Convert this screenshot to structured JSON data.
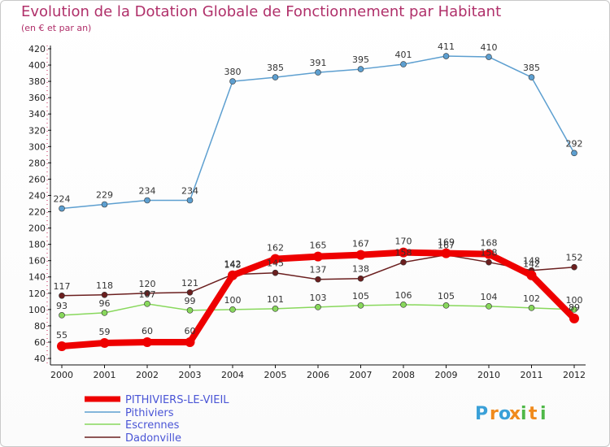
{
  "chart_data": {
    "type": "line",
    "title": "Evolution de la Dotation Globale de Fonctionnement par Habitant",
    "subtitle": "(en € et par an)",
    "xlabel": "",
    "ylabel": "",
    "x": [
      "2000",
      "2001",
      "2002",
      "2003",
      "2004",
      "2005",
      "2006",
      "2007",
      "2008",
      "2009",
      "2010",
      "2011",
      "2012"
    ],
    "ylim": [
      40,
      420
    ],
    "yticks": [
      40,
      60,
      80,
      100,
      120,
      140,
      160,
      180,
      200,
      220,
      240,
      260,
      280,
      300,
      320,
      340,
      360,
      380,
      400,
      420
    ],
    "grid": false,
    "legend_position": "bottom-left",
    "series": [
      {
        "name": "Dadonville",
        "color": "#6b1f1f",
        "values": [
          117,
          118,
          120,
          121,
          143,
          145,
          137,
          138,
          158,
          167,
          158,
          148,
          152
        ]
      },
      {
        "name": "Escrennes",
        "color": "#88d85c",
        "values": [
          93,
          96,
          107,
          99,
          100,
          101,
          103,
          105,
          106,
          105,
          104,
          102,
          100
        ]
      },
      {
        "name": "Pithiviers",
        "color": "#5d9fd0",
        "values": [
          224,
          229,
          234,
          234,
          380,
          385,
          391,
          395,
          401,
          411,
          410,
          385,
          292
        ]
      },
      {
        "name": "PITHIVIERS-LE-VIEIL",
        "color": "#ee0000",
        "values": [
          55,
          59,
          60,
          60,
          142,
          162,
          165,
          167,
          170,
          169,
          168,
          142,
          89
        ]
      }
    ],
    "value_labels": {
      "Dadonville": [
        "117",
        "118",
        "120",
        "121",
        "143",
        "145",
        "137",
        "138",
        "158",
        "167",
        "158",
        "148",
        "152"
      ],
      "Escrennes": [
        "93",
        "96",
        "107",
        "99",
        "100",
        "101",
        "103",
        "105",
        "106",
        "105",
        "104",
        "102",
        "100"
      ],
      "Pithiviers": [
        "224",
        "229",
        "234",
        "234",
        "380",
        "385",
        "391",
        "395",
        "401",
        "411",
        "410",
        "385",
        "292"
      ],
      "PITHIVIERS-LE-VIEIL": [
        "55",
        "59",
        "60",
        "60",
        "142",
        "162",
        "165",
        "167",
        "170",
        "169",
        "168",
        "142",
        "89"
      ]
    },
    "legend": [
      "PITHIVIERS-LE-VIEIL",
      "Pithiviers",
      "Escrennes",
      "Dadonville"
    ]
  },
  "logo": {
    "text": "Proxiti",
    "letters": [
      "P",
      "r",
      "o",
      "x",
      "i",
      "t",
      "i"
    ],
    "colors": [
      "#3aa0d8",
      "#f08a1c",
      "#3aa0d8",
      "#f08a1c",
      "#4fb848",
      "#f08a1c",
      "#4fb848"
    ]
  }
}
